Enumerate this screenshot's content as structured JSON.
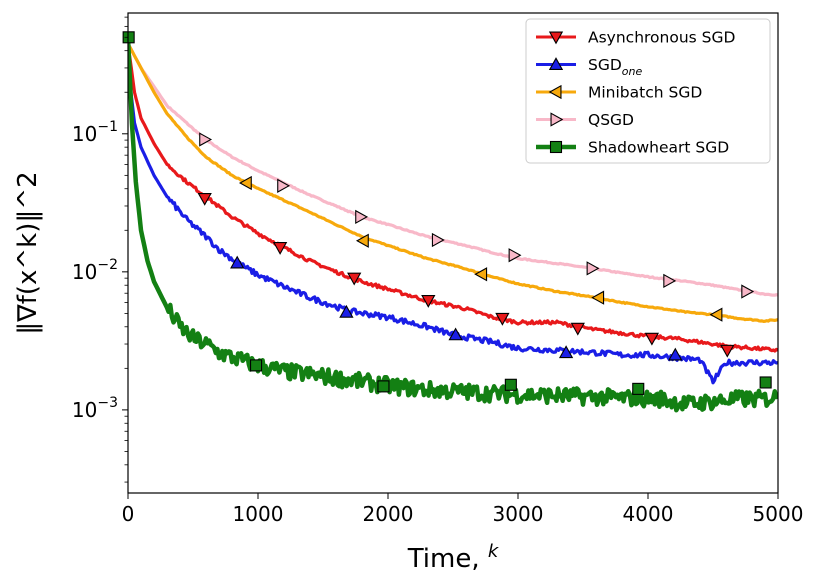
{
  "chart_data": {
    "type": "line",
    "yscale": "log",
    "xlabel": "Time, ",
    "xlabel_sup": "k",
    "ylabel": "‖∇f(x^k)‖^2",
    "xlim": [
      0,
      5000
    ],
    "ylim": [
      0.00025,
      0.75
    ],
    "xticks": [
      0,
      1000,
      2000,
      3000,
      4000,
      5000
    ],
    "xtick_labels": [
      "0",
      "1000",
      "2000",
      "3000",
      "4000",
      "5000"
    ],
    "yticks": [
      0.001,
      0.01,
      0.1
    ],
    "ytick_labels": [
      {
        "base": "10",
        "exp": "−3"
      },
      {
        "base": "10",
        "exp": "−2"
      },
      {
        "base": "10",
        "exp": "−1"
      }
    ],
    "legend_position": "top-right",
    "series": [
      {
        "name": "Asynchronous SGD",
        "name_sub": "",
        "color": "#e8191b",
        "marker": "triangle-down",
        "x": [
          0,
          50,
          100,
          200,
          300,
          450,
          600,
          800,
          1000,
          1200,
          1400,
          1600,
          1800,
          2000,
          2300,
          2600,
          2800,
          3000,
          3300,
          3600,
          3800,
          4000,
          4200,
          4400,
          4600,
          4800,
          5000
        ],
        "y": [
          0.45,
          0.2,
          0.13,
          0.085,
          0.06,
          0.045,
          0.035,
          0.025,
          0.019,
          0.015,
          0.012,
          0.01,
          0.0085,
          0.0075,
          0.0062,
          0.0054,
          0.0047,
          0.0043,
          0.0043,
          0.0038,
          0.0036,
          0.0034,
          0.0033,
          0.0031,
          0.0029,
          0.0028,
          0.0027
        ],
        "marker_x": [
          590,
          1170,
          1740,
          2310,
          2880,
          3460,
          4030,
          4610
        ],
        "marker_y": [
          0.034,
          0.015,
          0.009,
          0.0062,
          0.0046,
          0.0039,
          0.0033,
          0.0027
        ]
      },
      {
        "name": "SGD",
        "name_sub": "one",
        "color": "#1a1ee6",
        "marker": "triangle-up",
        "x": [
          0,
          50,
          100,
          200,
          300,
          450,
          600,
          700,
          850,
          1000,
          1200,
          1400,
          1700,
          2000,
          2300,
          2500,
          2800,
          3000,
          3300,
          3600,
          3800,
          4000,
          4200,
          4400,
          4500,
          4600,
          4800,
          5000
        ],
        "y": [
          0.3,
          0.12,
          0.08,
          0.05,
          0.035,
          0.024,
          0.018,
          0.0145,
          0.0115,
          0.0095,
          0.0078,
          0.0065,
          0.0052,
          0.0047,
          0.004,
          0.0035,
          0.0031,
          0.0028,
          0.0027,
          0.0026,
          0.0025,
          0.0025,
          0.0024,
          0.0023,
          0.0016,
          0.0022,
          0.0022,
          0.0022
        ],
        "marker_x": [
          840,
          1680,
          2520,
          3370,
          4210
        ],
        "marker_y": [
          0.0116,
          0.0051,
          0.0035,
          0.0026,
          0.0025
        ]
      },
      {
        "name": "Minibatch SGD",
        "name_sub": "",
        "color": "#f7a90c",
        "marker": "triangle-left",
        "x": [
          0,
          100,
          200,
          300,
          450,
          600,
          800,
          1000,
          1200,
          1400,
          1600,
          1800,
          2000,
          2300,
          2600,
          2800,
          3000,
          3300,
          3600,
          3800,
          4000,
          4300,
          4500,
          4700,
          4900,
          5000
        ],
        "y": [
          0.45,
          0.3,
          0.2,
          0.14,
          0.095,
          0.068,
          0.05,
          0.04,
          0.033,
          0.027,
          0.022,
          0.018,
          0.0155,
          0.0125,
          0.0105,
          0.0092,
          0.0082,
          0.0072,
          0.0065,
          0.006,
          0.0056,
          0.0051,
          0.0049,
          0.0046,
          0.0044,
          0.0045
        ],
        "marker_x": [
          910,
          1810,
          2720,
          3620,
          4530
        ],
        "marker_y": [
          0.044,
          0.0168,
          0.0096,
          0.0065,
          0.0049
        ]
      },
      {
        "name": "QSGD",
        "name_sub": "",
        "color": "#f8b8c8",
        "marker": "triangle-right",
        "x": [
          0,
          100,
          200,
          300,
          450,
          600,
          800,
          1000,
          1200,
          1400,
          1600,
          1800,
          2000,
          2300,
          2600,
          2800,
          3000,
          3300,
          3600,
          3800,
          4000,
          4300,
          4500,
          4700,
          4900,
          5000
        ],
        "y": [
          0.45,
          0.3,
          0.22,
          0.16,
          0.12,
          0.09,
          0.068,
          0.054,
          0.044,
          0.036,
          0.03,
          0.025,
          0.022,
          0.018,
          0.0155,
          0.0138,
          0.0125,
          0.0115,
          0.0105,
          0.0098,
          0.0092,
          0.0085,
          0.008,
          0.0074,
          0.0069,
          0.0068
        ],
        "marker_x": [
          590,
          1190,
          1790,
          2380,
          2970,
          3570,
          4160,
          4760
        ],
        "marker_y": [
          0.091,
          0.042,
          0.025,
          0.017,
          0.0132,
          0.0106,
          0.0086,
          0.0072
        ]
      },
      {
        "name": "Shadowheart SGD",
        "name_sub": "",
        "color": "#138013",
        "marker": "square",
        "x": [
          0,
          30,
          60,
          100,
          150,
          200,
          300,
          400,
          500,
          600,
          700,
          800,
          1000,
          1200,
          1400,
          1600,
          1800,
          2000,
          2300,
          2600,
          2900,
          3200,
          3500,
          3800,
          4100,
          4300,
          4500,
          4700,
          4900,
          5000
        ],
        "y": [
          0.5,
          0.12,
          0.045,
          0.02,
          0.012,
          0.0085,
          0.0055,
          0.004,
          0.0033,
          0.003,
          0.0026,
          0.0024,
          0.0021,
          0.0019,
          0.0018,
          0.0017,
          0.0016,
          0.0015,
          0.0014,
          0.00135,
          0.0013,
          0.00128,
          0.00125,
          0.00122,
          0.0012,
          0.0011,
          0.00115,
          0.0012,
          0.0012,
          0.00125
        ],
        "marker_x": [
          5,
          985,
          1965,
          2945,
          3925,
          4905
        ],
        "marker_y": [
          0.5,
          0.0021,
          0.00148,
          0.00152,
          0.00142,
          0.00158
        ]
      }
    ]
  }
}
